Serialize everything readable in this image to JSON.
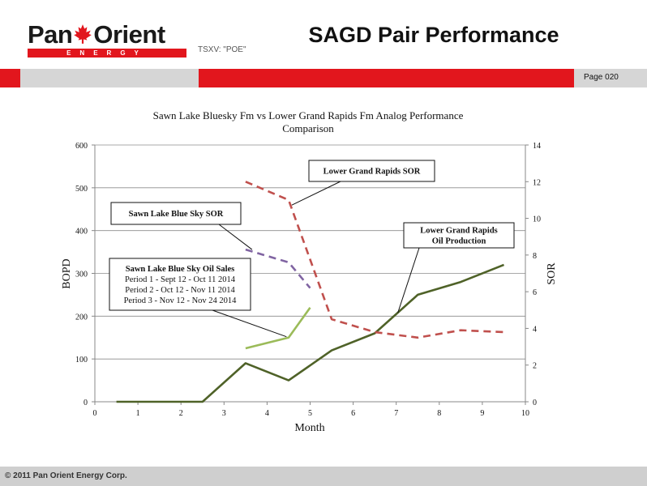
{
  "header": {
    "logo_text": "Pan Orient",
    "logo_subtext": "ENERGY",
    "ticker": "TSXV: \"POE\"",
    "title": "SAGD Pair Performance",
    "page": "Page 020"
  },
  "footer": {
    "copyright": "© 2011 Pan Orient Energy Corp."
  },
  "colors": {
    "brand_red": "#e2161d",
    "band_gray": "#d6d6d6"
  },
  "chart_data": {
    "type": "line",
    "title": "Sawn Lake Bluesky Fm vs Lower Grand Rapids Fm Analog Performance Comparison",
    "xlabel": "Month",
    "ylabel": "BOPD",
    "y2label": "SOR",
    "xlim": [
      0,
      10
    ],
    "ylim": [
      0,
      600
    ],
    "y2lim": [
      0,
      14
    ],
    "xticks": [
      "0",
      "1",
      "2",
      "3",
      "4",
      "5",
      "6",
      "7",
      "8",
      "9",
      "10"
    ],
    "yticks": [
      "0",
      "100",
      "200",
      "300",
      "400",
      "500",
      "600"
    ],
    "y2ticks": [
      "0",
      "2",
      "4",
      "6",
      "8",
      "10",
      "12",
      "14"
    ],
    "grid": "horizontal",
    "series": [
      {
        "axis": "left",
        "color": "#4f6228",
        "style": "solid",
        "x": [
          0.5,
          1.5,
          2.5,
          3.5,
          4.5,
          5.5,
          6.5,
          7.5,
          8.5,
          9.5
        ],
        "values": [
          0,
          0,
          0,
          90,
          50,
          120,
          160,
          250,
          280,
          320
        ]
      },
      {
        "axis": "left",
        "color": "#9bbb59",
        "style": "solid",
        "x": [
          3.5,
          4.5,
          5.0
        ],
        "values": [
          125,
          150,
          220
        ]
      },
      {
        "axis": "right",
        "color": "#c0504d",
        "style": "dashed",
        "x": [
          3.5,
          4.5,
          5.5,
          6.5,
          7.5,
          8.5,
          9.5
        ],
        "values": [
          12.0,
          11.0,
          4.5,
          3.8,
          3.5,
          3.9,
          3.8
        ]
      },
      {
        "axis": "right",
        "color": "#8064a2",
        "style": "dashed",
        "x": [
          3.5,
          4.5,
          5.0
        ],
        "values": [
          8.3,
          7.6,
          6.2
        ]
      }
    ],
    "annotations": [
      {
        "lines": [
          "Lower Grand Rapids SOR"
        ],
        "bold": true
      },
      {
        "lines": [
          "Sawn Lake Blue Sky SOR"
        ],
        "bold": true
      },
      {
        "lines": [
          "Lower Grand Rapids",
          "Oil Production"
        ],
        "bold": true
      },
      {
        "lines": [
          "Sawn Lake Blue Sky Oil Sales",
          "Period 1 - Sept 12 - Oct 11 2014",
          "Period 2 - Oct 12 - Nov 11 2014",
          "Period 3 - Nov 12 - Nov 24 2014"
        ],
        "bold": false
      }
    ]
  }
}
